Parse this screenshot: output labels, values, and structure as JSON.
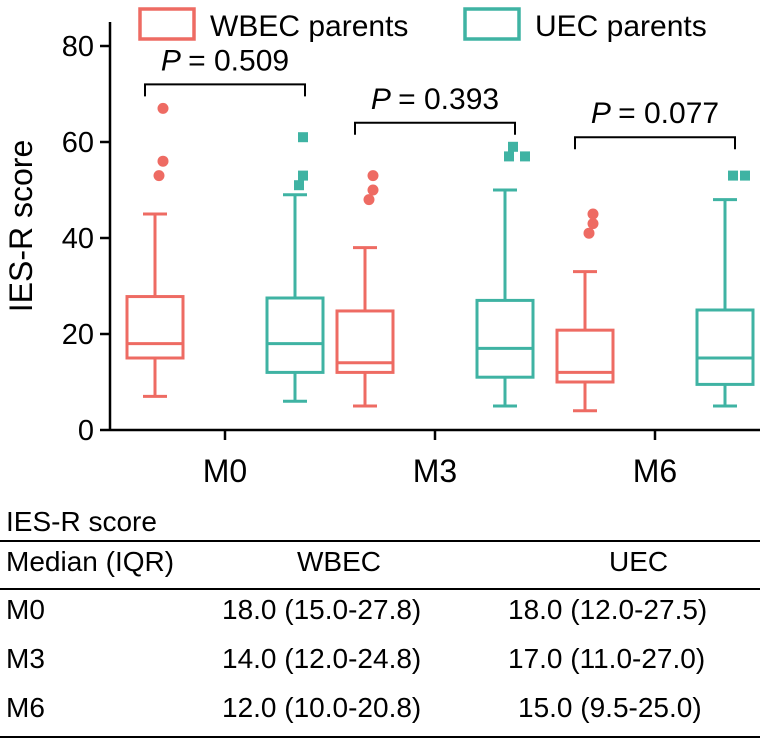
{
  "chart_data": {
    "type": "box",
    "ylabel": "IES-R score",
    "ylim": [
      0,
      85
    ],
    "yticks": [
      0,
      20,
      40,
      60,
      80
    ],
    "categories": [
      "M0",
      "M3",
      "M6"
    ],
    "legend": {
      "position": "top",
      "entries": [
        "WBEC parents",
        "UEC parents"
      ]
    },
    "colors": {
      "WBEC parents": "#ee6b63",
      "UEC parents": "#3fb3a3"
    },
    "series": [
      {
        "name": "WBEC parents",
        "marker": "circle",
        "boxes": [
          {
            "whisker_low": 7,
            "q1": 15.0,
            "median": 18.0,
            "q3": 27.8,
            "whisker_high": 45,
            "outliers": [
              53,
              56,
              67
            ]
          },
          {
            "whisker_low": 5,
            "q1": 12.0,
            "median": 14.0,
            "q3": 24.8,
            "whisker_high": 38,
            "outliers": [
              48,
              50,
              53
            ]
          },
          {
            "whisker_low": 4,
            "q1": 10.0,
            "median": 12.0,
            "q3": 20.8,
            "whisker_high": 33,
            "outliers": [
              41,
              43,
              45
            ]
          }
        ]
      },
      {
        "name": "UEC parents",
        "marker": "square",
        "boxes": [
          {
            "whisker_low": 6,
            "q1": 12.0,
            "median": 18.0,
            "q3": 27.5,
            "whisker_high": 49,
            "outliers": [
              51,
              53,
              61
            ]
          },
          {
            "whisker_low": 5,
            "q1": 11.0,
            "median": 17.0,
            "q3": 27.0,
            "whisker_high": 50,
            "outliers": [
              57,
              57,
              59
            ]
          },
          {
            "whisker_low": 5,
            "q1": 9.5,
            "median": 15.0,
            "q3": 25.0,
            "whisker_high": 48,
            "outliers": [
              53,
              53
            ]
          }
        ]
      }
    ],
    "annotations": [
      {
        "category": "M0",
        "p_label": "P",
        "p_value": "= 0.509",
        "bracket_y": 72
      },
      {
        "category": "M3",
        "p_label": "P",
        "p_value": "= 0.393",
        "bracket_y": 64
      },
      {
        "category": "M6",
        "p_label": "P",
        "p_value": "= 0.077",
        "bracket_y": 61
      }
    ]
  },
  "table": {
    "title": "IES-R score",
    "header": [
      "Median (IQR)",
      "WBEC",
      "UEC"
    ],
    "rows": [
      [
        "M0",
        "18.0 (15.0-27.8)",
        "18.0 (12.0-27.5)"
      ],
      [
        "M3",
        "14.0 (12.0-24.8)",
        "17.0 (11.0-27.0)"
      ],
      [
        "M6",
        "12.0 (10.0-20.8)",
        "15.0 (9.5-25.0)"
      ]
    ]
  }
}
